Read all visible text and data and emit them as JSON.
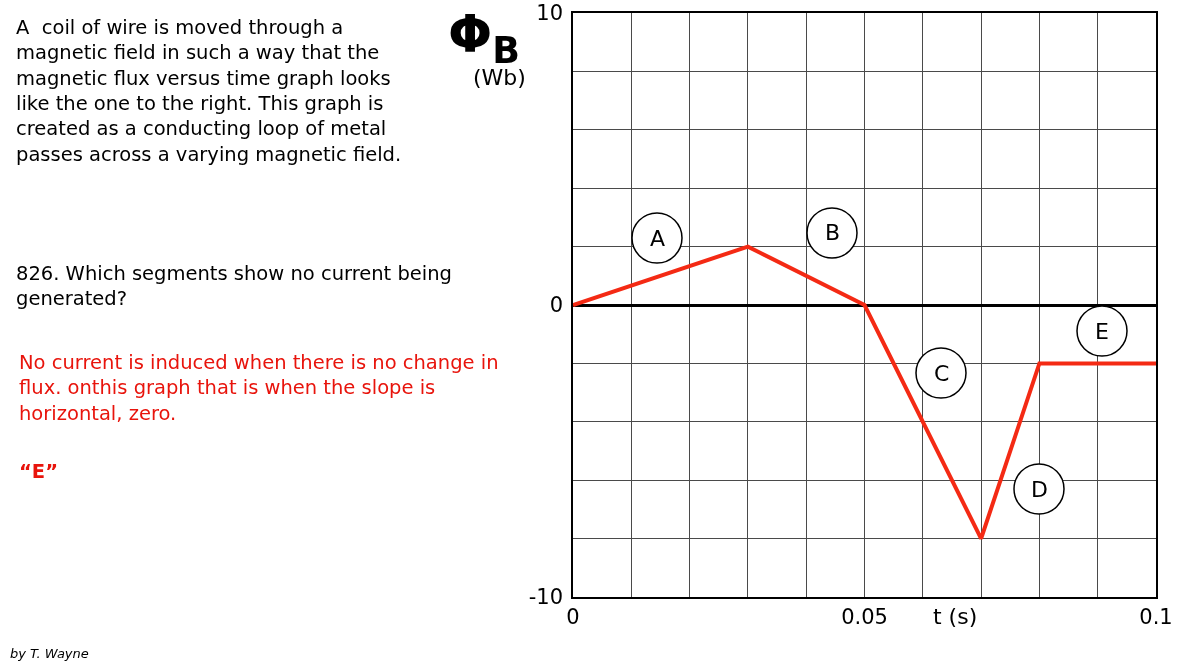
{
  "chart_data": {
    "type": "line",
    "xlabel": "t (s)",
    "ylabel": "Φ$_{B}$\n(Wb)",
    "x": [
      0,
      0.03,
      0.05,
      0.07,
      0.08,
      0.1
    ],
    "series": [
      {
        "color": "#f42a14",
        "values": [
          0,
          2,
          0,
          -8,
          -2,
          -2
        ]
      }
    ],
    "xlim": [
      0,
      0.1
    ],
    "xticks": [
      0,
      {
        "value": 0.01,
        "label": null
      },
      {
        "value": 0.02,
        "label": null
      },
      {
        "value": 0.03,
        "label": null
      },
      {
        "value": 0.04,
        "label": null
      },
      0.05,
      {
        "value": 0.06,
        "label": null
      },
      {
        "value": 0.07,
        "label": null
      },
      {
        "value": 0.08,
        "label": null
      },
      {
        "value": 0.09,
        "label": null
      },
      0.1
    ],
    "ylim": [
      -10,
      10
    ],
    "yticks": [
      -10,
      {
        "value": -8,
        "label": null
      },
      {
        "value": -6,
        "label": null
      },
      {
        "value": -4,
        "label": null
      },
      {
        "value": -2,
        "label": null
      },
      0,
      {
        "value": 2,
        "label": null
      },
      {
        "value": 4,
        "label": null
      },
      {
        "value": 6,
        "label": null
      },
      {
        "value": 8,
        "label": null
      },
      10
    ],
    "grid": true,
    "line_style": "solid",
    "annotations": [
      "A  coil of wire is moved through a\nmagnetic field in such a way that the\nmagnetic flux versus time graph looks\nlike the one to the right. This graph is\ncreated as a conducting loop of metal\npasses across a varying magnetic field.",
      "826. Which segments show no current being\ngenerated?",
      "No current is induced when there is no change in\nflux. onthis graph that is when the slope is\nhorizontal, zero.",
      "“E”",
      "by T. Wayne",
      "A",
      "B",
      "C",
      "D",
      "E"
    ]
  }
}
